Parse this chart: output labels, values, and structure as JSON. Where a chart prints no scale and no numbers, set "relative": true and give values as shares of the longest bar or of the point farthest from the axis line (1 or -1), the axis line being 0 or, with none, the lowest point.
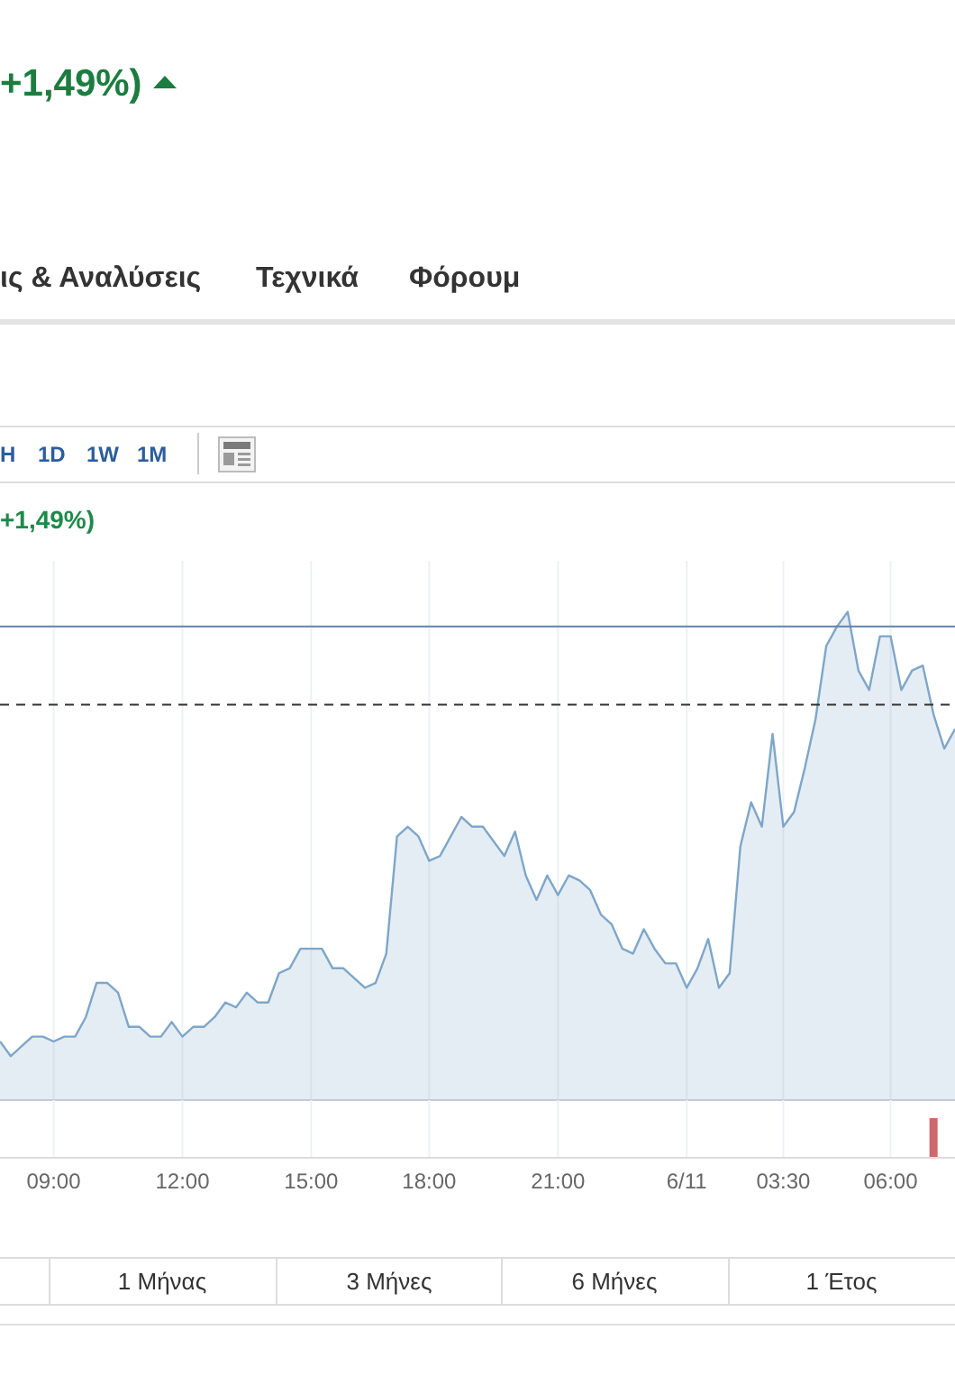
{
  "chart_data": [
    {
      "type": "area",
      "relative": true,
      "grid": "x",
      "categories": [
        null,
        null,
        null,
        null,
        null,
        null,
        null,
        null,
        null,
        null,
        null,
        null,
        null,
        null,
        null,
        null,
        null,
        null,
        null,
        null,
        null,
        null,
        null,
        null,
        null,
        null,
        null,
        null,
        null,
        null,
        null,
        null,
        null,
        null,
        null,
        null,
        null,
        null,
        null,
        null,
        null,
        null,
        null,
        null,
        null,
        null,
        null,
        null,
        null,
        null,
        null,
        null,
        null,
        null,
        null,
        null,
        null,
        null,
        null,
        null,
        null,
        null,
        null,
        null,
        null,
        null,
        null,
        null,
        null,
        null,
        null,
        null,
        null,
        null,
        null,
        null,
        null,
        null,
        null,
        null,
        null,
        null,
        null,
        null,
        null,
        null,
        null,
        null,
        null,
        null
      ],
      "series": [
        {
          "color": "#7ea6c9",
          "values": [
            0.12,
            0.09,
            0.11,
            0.13,
            0.13,
            0.12,
            0.13,
            0.13,
            0.17,
            0.24,
            0.24,
            0.22,
            0.15,
            0.15,
            0.13,
            0.13,
            0.16,
            0.13,
            0.15,
            0.15,
            0.17,
            0.2,
            0.19,
            0.22,
            0.2,
            0.2,
            0.26,
            0.27,
            0.31,
            0.31,
            0.31,
            0.27,
            0.27,
            0.25,
            0.23,
            0.24,
            0.3,
            0.54,
            0.56,
            0.54,
            0.49,
            0.5,
            0.54,
            0.58,
            0.56,
            0.56,
            0.53,
            0.5,
            0.55,
            0.46,
            0.41,
            0.46,
            0.42,
            0.46,
            0.45,
            0.43,
            0.38,
            0.36,
            0.31,
            0.3,
            0.35,
            0.31,
            0.28,
            0.28,
            0.23,
            0.27,
            0.33,
            0.23,
            0.26,
            0.52,
            0.61,
            0.56,
            0.75,
            0.56,
            0.59,
            0.68,
            0.78,
            0.93,
            0.97,
            1,
            0.88,
            0.84,
            0.95,
            0.95,
            0.84,
            0.88,
            0.89,
            0.79,
            0.72,
            0.76
          ]
        }
      ],
      "ref_lines": [
        {
          "axis": "y",
          "value": 0.97,
          "color": "#5f84ad",
          "line_style": "solid"
        },
        {
          "axis": "y",
          "value": 0.81,
          "color": "#333333",
          "line_style": "dashed"
        }
      ],
      "annotations": [
        "+1,49%)",
        "ις & Αναλύσεις",
        "Τεχνικά",
        "Φόρουμ",
        "H",
        "1D",
        "1W",
        "1M",
        "+1,49%)",
        "1 Μήνας",
        "3 Μήνες",
        "6 Μήνες",
        "1 Έτος"
      ]
    },
    {
      "type": "bar",
      "relative": true,
      "tick_labels": "x",
      "grid": "x",
      "categories": [
        null,
        null,
        null,
        null,
        null,
        "09:00",
        null,
        null,
        null,
        null,
        null,
        null,
        null,
        null,
        null,
        null,
        null,
        "12:00",
        null,
        null,
        null,
        null,
        null,
        null,
        null,
        null,
        null,
        null,
        null,
        "15:00",
        null,
        null,
        null,
        null,
        null,
        null,
        null,
        null,
        null,
        null,
        "18:00",
        null,
        null,
        null,
        null,
        null,
        null,
        null,
        null,
        null,
        null,
        null,
        "21:00",
        null,
        null,
        null,
        null,
        null,
        null,
        null,
        null,
        null,
        null,
        null,
        "6/11",
        null,
        null,
        null,
        null,
        null,
        null,
        null,
        null,
        "03:30",
        null,
        null,
        null,
        null,
        null,
        null,
        null,
        null,
        null,
        "06:00",
        null,
        null,
        null,
        null,
        null,
        null
      ],
      "series": [
        {
          "color": "#d0676b",
          "values": [
            null,
            null,
            null,
            null,
            null,
            null,
            null,
            null,
            null,
            null,
            null,
            null,
            null,
            null,
            null,
            null,
            null,
            null,
            null,
            null,
            null,
            null,
            null,
            null,
            null,
            null,
            null,
            null,
            null,
            null,
            null,
            null,
            null,
            null,
            null,
            null,
            null,
            null,
            null,
            null,
            null,
            null,
            null,
            null,
            null,
            null,
            null,
            null,
            null,
            null,
            null,
            null,
            null,
            null,
            null,
            null,
            null,
            null,
            null,
            null,
            null,
            null,
            null,
            null,
            null,
            null,
            null,
            null,
            null,
            null,
            null,
            null,
            null,
            null,
            null,
            null,
            null,
            null,
            null,
            null,
            null,
            null,
            null,
            null,
            null,
            null,
            null,
            1,
            null,
            null
          ]
        }
      ]
    }
  ]
}
